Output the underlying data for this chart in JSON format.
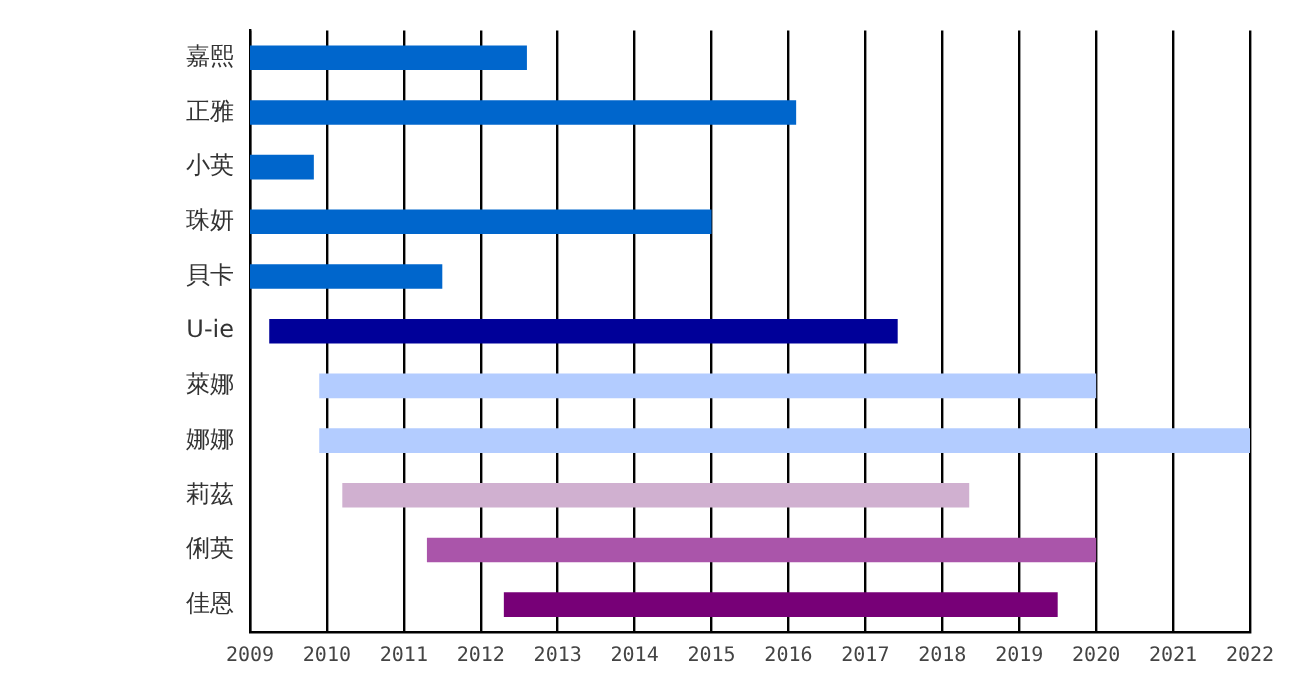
{
  "chart_data": {
    "type": "bar",
    "orientation": "horizontal",
    "categories": [
      "嘉熙",
      "正雅",
      "小英",
      "珠妍",
      "貝卡",
      "U-ie",
      "萊娜",
      "娜娜",
      "莉茲",
      "俐英",
      "佳恩"
    ],
    "base": [
      2009,
      2009,
      2009,
      2009,
      2009,
      2009.25,
      2009.9,
      2009.9,
      2010.2,
      2011.3,
      2012.3
    ],
    "values": [
      3.6,
      7.1,
      0.83,
      6.0,
      2.5,
      8.17,
      10.1,
      12.1,
      8.15,
      8.7,
      7.2
    ],
    "colors": [
      "#0066cc",
      "#0066cc",
      "#0066cc",
      "#0066cc",
      "#0066cc",
      "#000099",
      "#b3ccff",
      "#b3ccff",
      "#d0b0d0",
      "#aa55aa",
      "#770077"
    ],
    "xlim": [
      2009,
      2022
    ],
    "xticks": [
      2009,
      2010,
      2011,
      2012,
      2013,
      2014,
      2015,
      2016,
      2017,
      2018,
      2019,
      2020,
      2021,
      2022
    ],
    "grid": "x"
  }
}
